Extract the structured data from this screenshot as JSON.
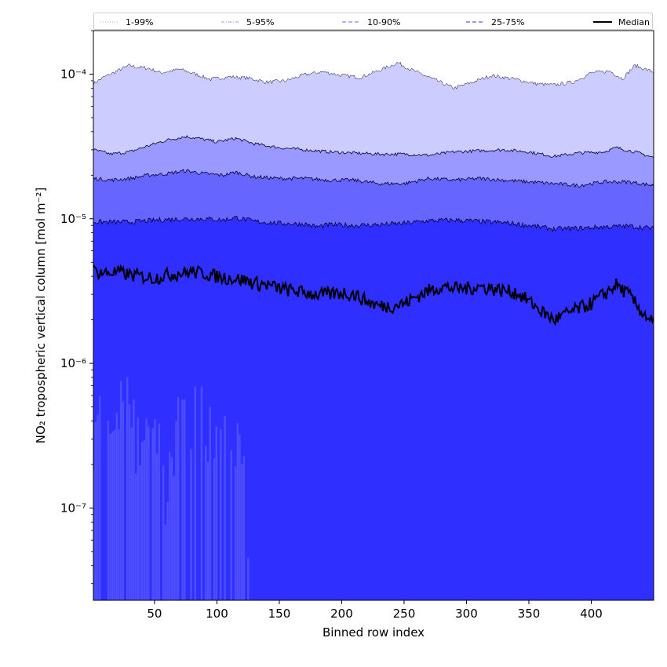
{
  "chart_data": {
    "type": "area",
    "xlabel": "Binned row index",
    "ylabel": "NO₂ tropospheric vertical column [mol m⁻²]",
    "yscale": "log",
    "xlim": [
      1,
      450
    ],
    "ylim": [
      2.3e-08,
      0.0002
    ],
    "x_ticks": [
      50,
      100,
      150,
      200,
      250,
      300,
      350,
      400
    ],
    "y_ticks": [
      {
        "value": 1e-07,
        "label": "10⁻⁷"
      },
      {
        "value": 1e-06,
        "label": "10⁻⁶"
      },
      {
        "value": 1e-05,
        "label": "10⁻⁵"
      },
      {
        "value": 0.0001,
        "label": "10⁻⁴"
      }
    ],
    "legend_position": "top, above axes, spanning full width",
    "colors": {
      "band_1_99": "#ccccff",
      "band_5_95": "#9999ff",
      "band_10_90": "#6666ff",
      "band_25_75": "#2f2fff",
      "median": "#000000"
    },
    "series": [
      {
        "name": "1-99%",
        "style": "dotted",
        "color": "#ccccff",
        "x": [
          1,
          10,
          20,
          30,
          35,
          45,
          55,
          70,
          80,
          95,
          110,
          125,
          140,
          155,
          170,
          185,
          200,
          215,
          230,
          245,
          255,
          270,
          290,
          305,
          320,
          340,
          355,
          370,
          385,
          400,
          415,
          425,
          435,
          450
        ],
        "upper": [
          8.6e-05,
          9.6e-05,
          0.000105,
          0.000115,
          0.000112,
          0.00011,
          0.000102,
          0.000108,
          0.000102,
          9.2e-05,
          9.6e-05,
          9.4e-05,
          8.8e-05,
          9e-05,
          9.9e-05,
          0.000104,
          9.8e-05,
          9.5e-05,
          0.000106,
          0.00012,
          0.000108,
          9.5e-05,
          8e-05,
          8.8e-05,
          9.8e-05,
          9.2e-05,
          8.6e-05,
          8.4e-05,
          8.8e-05,
          0.000102,
          0.000105,
          9.3e-05,
          0.000115,
          0.000103
        ],
        "lower_values_low_x": [
          5.5e-07,
          6e-07,
          7.5e-07,
          3.5e-07,
          4e-07,
          2e-07,
          5.5e-07,
          5.7e-07,
          4.5e-07,
          4.3e-07,
          3.1e-07,
          1.2e-07
        ]
      },
      {
        "name": "5-95%",
        "style": "dashdot",
        "color": "#9999ff",
        "x": [
          1,
          15,
          30,
          45,
          60,
          75,
          85,
          100,
          115,
          130,
          150,
          170,
          190,
          210,
          230,
          250,
          270,
          290,
          310,
          330,
          350,
          370,
          390,
          410,
          420,
          435,
          450
        ],
        "upper": [
          3e-05,
          2.8e-05,
          2.9e-05,
          3.2e-05,
          3.5e-05,
          3.7e-05,
          3.6e-05,
          3.4e-05,
          3.6e-05,
          3.3e-05,
          3.1e-05,
          3e-05,
          2.9e-05,
          2.85e-05,
          2.8e-05,
          2.8e-05,
          2.75e-05,
          2.9e-05,
          2.95e-05,
          3e-05,
          2.9e-05,
          2.7e-05,
          2.85e-05,
          2.9e-05,
          3.1e-05,
          2.9e-05,
          2.65e-05
        ]
      },
      {
        "name": "10-90%",
        "style": "dashed",
        "color": "#6666ff",
        "x": [
          1,
          15,
          30,
          45,
          60,
          75,
          90,
          105,
          115,
          130,
          150,
          170,
          190,
          210,
          230,
          250,
          270,
          290,
          310,
          330,
          350,
          370,
          390,
          410,
          430,
          450
        ],
        "upper": [
          1.9e-05,
          1.85e-05,
          1.9e-05,
          2e-05,
          2.05e-05,
          2.15e-05,
          2.05e-05,
          2e-05,
          2.1e-05,
          1.95e-05,
          1.9e-05,
          1.9e-05,
          1.85e-05,
          1.85e-05,
          1.75e-05,
          1.75e-05,
          1.9e-05,
          1.85e-05,
          1.9e-05,
          1.85e-05,
          1.8e-05,
          1.75e-05,
          1.7e-05,
          1.8e-05,
          1.8e-05,
          1.7e-05
        ]
      },
      {
        "name": "25-75%",
        "style": "dashed",
        "color": "#2f2fff",
        "x": [
          1,
          15,
          30,
          45,
          60,
          75,
          90,
          105,
          115,
          130,
          150,
          170,
          180,
          190,
          210,
          230,
          250,
          270,
          290,
          310,
          330,
          350,
          370,
          390,
          410,
          430,
          450
        ],
        "upper": [
          9.5e-06,
          9.5e-06,
          9.5e-06,
          9.7e-06,
          9.9e-06,
          1e-05,
          1e-05,
          9.8e-06,
          1.02e-05,
          9.6e-06,
          9.3e-06,
          9.2e-06,
          8.8e-06,
          9.1e-06,
          9e-06,
          9.1e-06,
          9.3e-06,
          9.7e-06,
          9.8e-06,
          9.6e-06,
          9.4e-06,
          9e-06,
          8.5e-06,
          8.6e-06,
          8.8e-06,
          8.9e-06,
          8.6e-06
        ]
      },
      {
        "name": "Median",
        "style": "solid",
        "color": "#000000",
        "x": [
          1,
          10,
          20,
          30,
          40,
          50,
          60,
          70,
          80,
          90,
          100,
          110,
          120,
          130,
          140,
          150,
          160,
          170,
          180,
          190,
          200,
          210,
          220,
          230,
          240,
          250,
          260,
          270,
          280,
          290,
          300,
          310,
          320,
          330,
          340,
          350,
          360,
          370,
          380,
          390,
          400,
          410,
          420,
          430,
          440,
          450
        ],
        "y": [
          4.4e-06,
          4.2e-06,
          4.3e-06,
          4.1e-06,
          4e-06,
          3.9e-06,
          4.1e-06,
          4.2e-06,
          4.3e-06,
          4.2e-06,
          4e-06,
          3.9e-06,
          3.8e-06,
          3.6e-06,
          3.5e-06,
          3.3e-06,
          3.2e-06,
          3.1e-06,
          3e-06,
          3e-06,
          3.1e-06,
          3e-06,
          2.7e-06,
          2.5e-06,
          2.5e-06,
          2.6e-06,
          2.9e-06,
          3.2e-06,
          3.4e-06,
          3.3e-06,
          3.3e-06,
          3.4e-06,
          3.3e-06,
          3.2e-06,
          3.1e-06,
          2.7e-06,
          2.3e-06,
          2e-06,
          2.2e-06,
          2.4e-06,
          2.6e-06,
          3e-06,
          3.5e-06,
          3e-06,
          2.3e-06,
          1.9e-06
        ]
      }
    ]
  }
}
